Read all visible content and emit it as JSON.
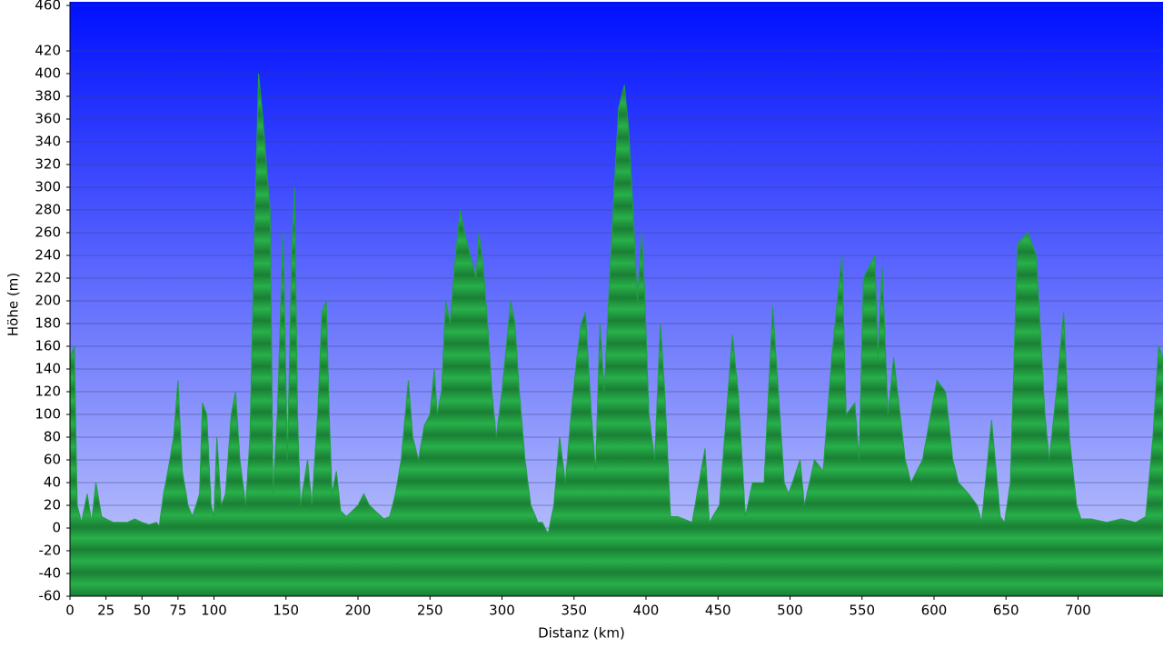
{
  "chart_data": {
    "type": "area",
    "xlabel": "Distanz   (km)",
    "ylabel": "Höhe (m)",
    "x": [
      0,
      3,
      5,
      8,
      12,
      15,
      18,
      22,
      25,
      30,
      40,
      45,
      50,
      55,
      60,
      62,
      65,
      68,
      72,
      75,
      78,
      82,
      85,
      90,
      92,
      95,
      98,
      100,
      102,
      105,
      108,
      112,
      115,
      118,
      122,
      125,
      128,
      131,
      134,
      137,
      139,
      141,
      144,
      148,
      151,
      154,
      156,
      158,
      160,
      165,
      168,
      172,
      175,
      178,
      180,
      182,
      185,
      188,
      192,
      196,
      200,
      204,
      208,
      212,
      218,
      222,
      226,
      230,
      235,
      238,
      242,
      246,
      250,
      253,
      255,
      258,
      261,
      264,
      267,
      271,
      274,
      278,
      282,
      284,
      287,
      290,
      293,
      296,
      300,
      303,
      306,
      309,
      312,
      316,
      320,
      325,
      328,
      332,
      336,
      340,
      344,
      348,
      352,
      355,
      358,
      362,
      365,
      368,
      371,
      374,
      378,
      381,
      385,
      388,
      391,
      394,
      397,
      399,
      402,
      406,
      410,
      413,
      417,
      422,
      432,
      441,
      444,
      451,
      457,
      460,
      464,
      469,
      474,
      482,
      488,
      496,
      499,
      507,
      510,
      517,
      523,
      529,
      536,
      539,
      545,
      548,
      551,
      559,
      561,
      564,
      568,
      572,
      580,
      584,
      592,
      602,
      608,
      613,
      617,
      624,
      630,
      633,
      640,
      646,
      649,
      653,
      658,
      665,
      671,
      677,
      680,
      685,
      690,
      694,
      699,
      702,
      709,
      720,
      730,
      740,
      747,
      752,
      756,
      759
    ],
    "values": [
      150,
      160,
      20,
      5,
      30,
      5,
      40,
      10,
      8,
      5,
      5,
      8,
      5,
      3,
      5,
      2,
      30,
      50,
      80,
      130,
      50,
      20,
      10,
      30,
      110,
      100,
      20,
      10,
      80,
      20,
      30,
      100,
      120,
      60,
      20,
      80,
      250,
      400,
      360,
      310,
      280,
      30,
      100,
      260,
      60,
      240,
      300,
      100,
      20,
      60,
      20,
      100,
      190,
      200,
      100,
      30,
      50,
      15,
      10,
      15,
      20,
      30,
      20,
      15,
      8,
      10,
      30,
      60,
      130,
      80,
      60,
      90,
      100,
      140,
      100,
      120,
      200,
      180,
      230,
      280,
      260,
      240,
      220,
      260,
      230,
      180,
      120,
      80,
      120,
      160,
      200,
      180,
      120,
      60,
      20,
      5,
      5,
      -5,
      20,
      80,
      40,
      100,
      150,
      180,
      190,
      100,
      50,
      180,
      120,
      200,
      300,
      370,
      390,
      350,
      280,
      200,
      260,
      210,
      100,
      60,
      180,
      120,
      10,
      10,
      5,
      70,
      5,
      20,
      120,
      170,
      120,
      10,
      40,
      40,
      195,
      40,
      30,
      60,
      20,
      60,
      50,
      150,
      240,
      100,
      110,
      60,
      220,
      240,
      150,
      230,
      100,
      150,
      60,
      40,
      60,
      130,
      120,
      60,
      40,
      30,
      20,
      5,
      95,
      10,
      5,
      40,
      250,
      260,
      240,
      100,
      60,
      120,
      190,
      80,
      20,
      8,
      8,
      5,
      8,
      5,
      10,
      80,
      160,
      150
    ],
    "color": "#1f9f3f",
    "xlim": [
      0,
      759
    ],
    "xticks": [
      0,
      25,
      50,
      75,
      100,
      150,
      200,
      250,
      300,
      350,
      400,
      450,
      500,
      550,
      600,
      650,
      700
    ],
    "ylim": [
      -60,
      460
    ],
    "yticks": [
      -60,
      -40,
      -20,
      0,
      20,
      40,
      60,
      80,
      100,
      120,
      140,
      160,
      180,
      200,
      220,
      240,
      260,
      280,
      300,
      320,
      340,
      360,
      380,
      400,
      420,
      460
    ],
    "grid": true
  }
}
